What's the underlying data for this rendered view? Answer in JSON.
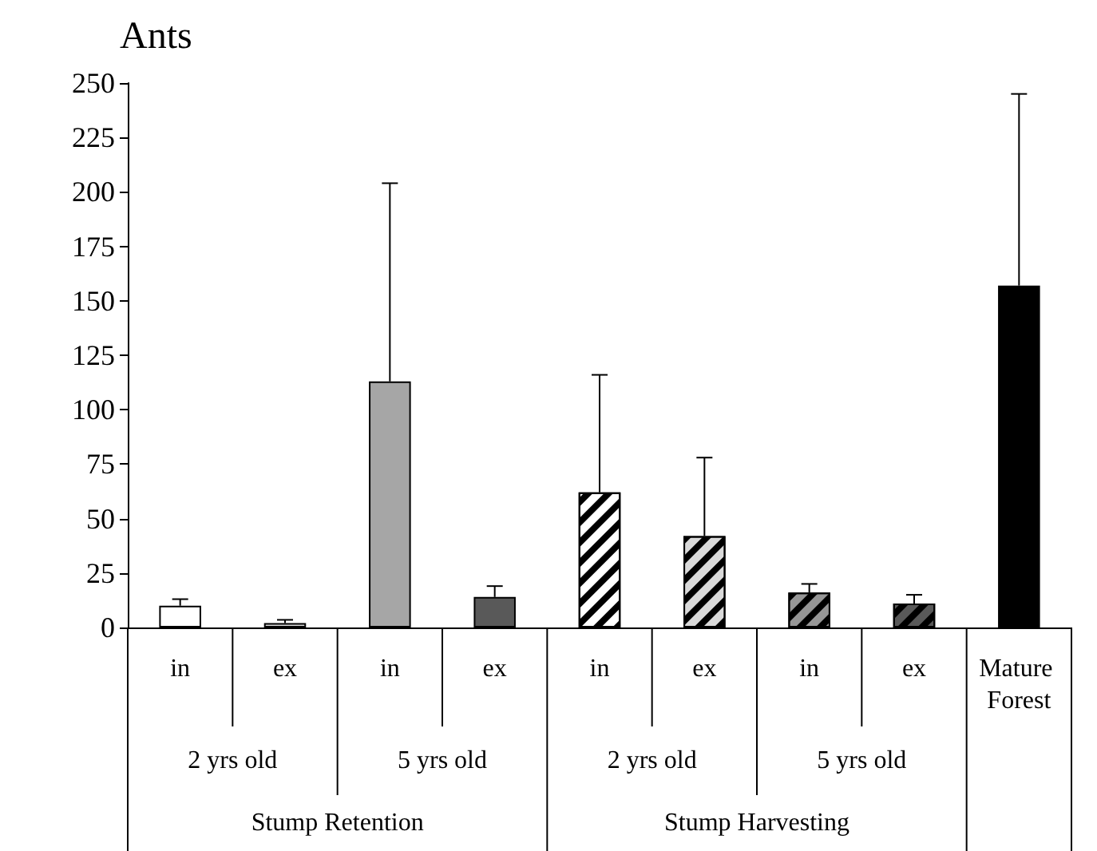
{
  "chart_data": {
    "type": "bar",
    "title": "Ants",
    "categories": [
      "in",
      "ex",
      "in",
      "ex",
      "in",
      "ex",
      "in",
      "ex",
      "Mature Forest"
    ],
    "values": [
      10,
      2,
      113,
      14,
      62,
      42,
      16,
      11,
      157
    ],
    "colors": [
      "#ffffff",
      "#d9d9d9",
      "#a6a6a6",
      "#595959",
      "#ffffff",
      "#d9d9d9",
      "#969696",
      "#595959",
      "#000000"
    ],
    "errors": [
      [
        10,
        13
      ],
      [
        2,
        3.5
      ],
      [
        113,
        204
      ],
      [
        14,
        19
      ],
      [
        62,
        116
      ],
      [
        42,
        78
      ],
      [
        16,
        20
      ],
      [
        11,
        15
      ],
      [
        157,
        245
      ]
    ],
    "ylim": [
      0,
      250
    ],
    "yticks": [
      0,
      25,
      50,
      75,
      100,
      125,
      150,
      175,
      200,
      225,
      250
    ],
    "grid": false,
    "annotations": [
      "2 yrs old",
      "5 yrs old",
      "2 yrs old",
      "5 yrs old",
      "Stump Retention",
      "Stump Harvesting"
    ]
  }
}
